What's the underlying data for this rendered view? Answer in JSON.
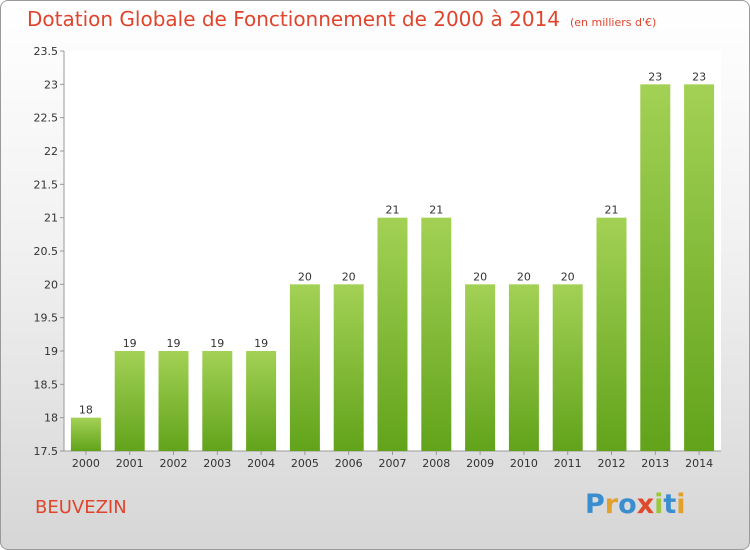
{
  "header": {
    "title": "Dotation Globale de Fonctionnement de 2000 à 2014",
    "subtitle": "(en milliers d'€)"
  },
  "commune": "BEUVEZIN",
  "logo": {
    "text": "Proxiti",
    "letters": [
      "P",
      "r",
      "o",
      "x",
      "i",
      "t",
      "i"
    ],
    "colors": [
      "#3a8ed0",
      "#e3a02a",
      "#3a8ed0",
      "#e04a2c",
      "#9cc63e",
      "#3a8ed0",
      "#e3a02a"
    ]
  },
  "chart_data": {
    "type": "bar",
    "categories": [
      "2000",
      "2001",
      "2002",
      "2003",
      "2004",
      "2005",
      "2006",
      "2007",
      "2008",
      "2009",
      "2010",
      "2011",
      "2012",
      "2013",
      "2014"
    ],
    "values": [
      18,
      19,
      19,
      19,
      19,
      20,
      20,
      21,
      21,
      20,
      20,
      20,
      21,
      23,
      23
    ],
    "ylim": [
      17.5,
      23.5
    ],
    "yticks": [
      17.5,
      18,
      18.5,
      19,
      19.5,
      20,
      20.5,
      21,
      21.5,
      22,
      22.5,
      23,
      23.5
    ],
    "grid": false,
    "bar_color": "#8cc63f"
  }
}
